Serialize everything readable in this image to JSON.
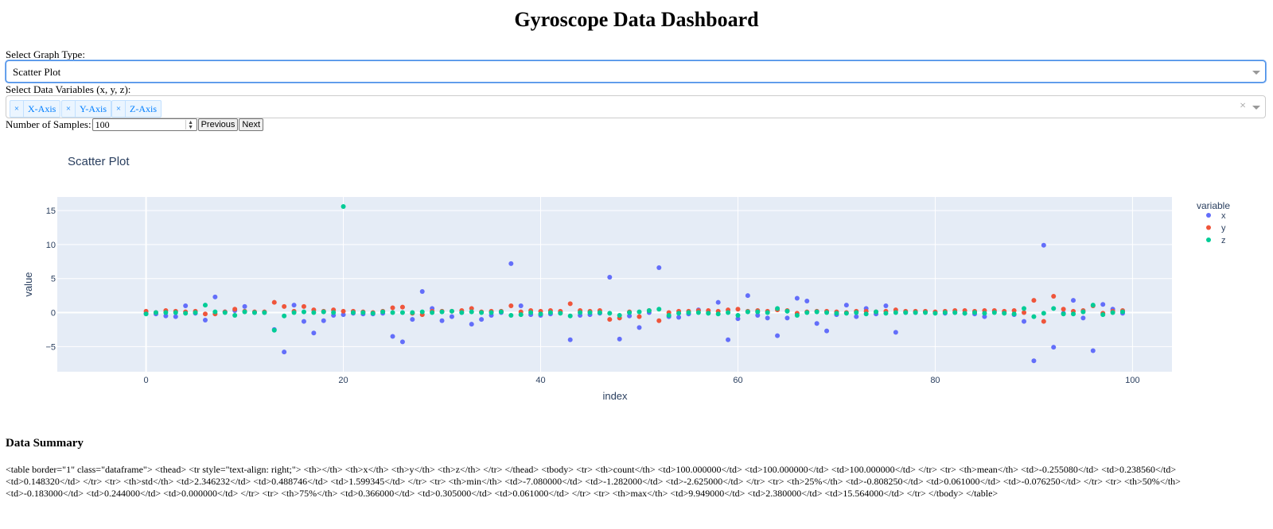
{
  "page": {
    "title": "Gyroscope Data Dashboard"
  },
  "controls": {
    "graph_type_label": "Select Graph Type:",
    "graph_type_value": "Scatter Plot",
    "variables_label": "Select Data Variables (x, y, z):",
    "variables": [
      "X-Axis",
      "Y-Axis",
      "Z-Axis"
    ],
    "chip_remove": "×",
    "clear_all": "×",
    "samples_label": "Number of Samples:",
    "samples_value": "100",
    "prev_label": "Previous",
    "next_label": "Next"
  },
  "summary": {
    "heading": "Data Summary",
    "text": "<table border=\"1\" class=\"dataframe\"> <thead> <tr style=\"text-align: right;\"> <th></th> <th>x</th> <th>y</th> <th>z</th> </tr> </thead> <tbody> <tr> <th>count</th> <td>100.000000</td> <td>100.000000</td> <td>100.000000</td> </tr> <tr> <th>mean</th> <td>-0.255080</td> <td>0.238560</td> <td>0.148320</td> </tr> <tr> <th>std</th> <td>2.346232</td> <td>0.488746</td> <td>1.599345</td> </tr> <tr> <th>min</th> <td>-7.080000</td> <td>-1.282000</td> <td>-2.625000</td> </tr> <tr> <th>25%</th> <td>-0.808250</td> <td>0.061000</td> <td>-0.076250</td> </tr> <tr> <th>50%</th> <td>-0.183000</td> <td>0.244000</td> <td>0.000000</td> </tr> <tr> <th>75%</th> <td>0.366000</td> <td>0.305000</td> <td>0.061000</td> </tr> <tr> <th>max</th> <td>9.949000</td> <td>2.380000</td> <td>15.564000</td> </tr> </tbody> </table>"
  },
  "chart_data": {
    "type": "scatter",
    "title": "Scatter Plot",
    "xlabel": "index",
    "ylabel": "value",
    "xlim": [
      -9,
      104
    ],
    "ylim": [
      -8.7,
      17
    ],
    "xticks": [
      0,
      20,
      40,
      60,
      80,
      100
    ],
    "yticks": [
      -5,
      0,
      5,
      10,
      15
    ],
    "grid": true,
    "legend_title": "variable",
    "legend_position": "top-right",
    "series": [
      {
        "name": "x",
        "color": "#636efa",
        "points": [
          [
            0,
            -0.1
          ],
          [
            1,
            -0.2
          ],
          [
            2,
            -0.5
          ],
          [
            3,
            -0.6
          ],
          [
            4,
            1.0
          ],
          [
            5,
            -0.1
          ],
          [
            6,
            -1.1
          ],
          [
            7,
            2.3
          ],
          [
            8,
            0.1
          ],
          [
            9,
            0.3
          ],
          [
            10,
            0.9
          ],
          [
            11,
            0.0
          ],
          [
            12,
            0.0
          ],
          [
            13,
            -2.5
          ],
          [
            14,
            -5.8
          ],
          [
            15,
            1.1
          ],
          [
            16,
            -1.3
          ],
          [
            17,
            -3.0
          ],
          [
            18,
            -1.2
          ],
          [
            19,
            -0.4
          ],
          [
            20,
            -0.3
          ],
          [
            21,
            -0.1
          ],
          [
            22,
            -0.2
          ],
          [
            23,
            -0.2
          ],
          [
            24,
            -0.1
          ],
          [
            25,
            -3.5
          ],
          [
            26,
            -4.3
          ],
          [
            27,
            -1.0
          ],
          [
            28,
            3.1
          ],
          [
            29,
            0.6
          ],
          [
            30,
            -1.2
          ],
          [
            31,
            -0.6
          ],
          [
            32,
            0.0
          ],
          [
            33,
            -1.7
          ],
          [
            34,
            -1.0
          ],
          [
            35,
            -0.4
          ],
          [
            36,
            0.0
          ],
          [
            37,
            7.2
          ],
          [
            38,
            1.0
          ],
          [
            39,
            -0.3
          ],
          [
            40,
            -0.4
          ],
          [
            41,
            -0.2
          ],
          [
            42,
            0.0
          ],
          [
            43,
            -4.0
          ],
          [
            44,
            -0.4
          ],
          [
            45,
            -0.3
          ],
          [
            46,
            -0.1
          ],
          [
            47,
            5.2
          ],
          [
            48,
            -3.9
          ],
          [
            49,
            -0.5
          ],
          [
            50,
            -2.2
          ],
          [
            51,
            0.0
          ],
          [
            52,
            6.6
          ],
          [
            53,
            -0.6
          ],
          [
            54,
            -0.7
          ],
          [
            55,
            -0.2
          ],
          [
            56,
            0.4
          ],
          [
            57,
            0.0
          ],
          [
            58,
            1.5
          ],
          [
            59,
            -4.0
          ],
          [
            60,
            -0.9
          ],
          [
            61,
            2.5
          ],
          [
            62,
            -0.4
          ],
          [
            63,
            -0.8
          ],
          [
            64,
            -3.4
          ],
          [
            65,
            -0.8
          ],
          [
            66,
            2.1
          ],
          [
            67,
            1.7
          ],
          [
            68,
            -1.6
          ],
          [
            69,
            -2.7
          ],
          [
            70,
            -0.3
          ],
          [
            71,
            1.1
          ],
          [
            72,
            -0.6
          ],
          [
            73,
            0.6
          ],
          [
            74,
            -0.2
          ],
          [
            75,
            1.0
          ],
          [
            76,
            -2.9
          ],
          [
            77,
            0.0
          ],
          [
            78,
            0.0
          ],
          [
            79,
            0.1
          ],
          [
            80,
            0.0
          ],
          [
            81,
            -0.1
          ],
          [
            82,
            0.0
          ],
          [
            83,
            -0.1
          ],
          [
            84,
            -0.2
          ],
          [
            85,
            -0.6
          ],
          [
            86,
            0.2
          ],
          [
            87,
            0.0
          ],
          [
            88,
            -0.3
          ],
          [
            89,
            -1.3
          ],
          [
            90,
            -7.1
          ],
          [
            91,
            9.9
          ],
          [
            92,
            -5.1
          ],
          [
            93,
            -0.1
          ],
          [
            94,
            1.8
          ],
          [
            95,
            -0.8
          ],
          [
            96,
            -5.6
          ],
          [
            97,
            1.2
          ],
          [
            98,
            0.5
          ],
          [
            99,
            -0.1
          ]
        ]
      },
      {
        "name": "y",
        "color": "#ef553b",
        "points": [
          [
            0,
            0.2
          ],
          [
            1,
            0.0
          ],
          [
            2,
            0.3
          ],
          [
            3,
            0.2
          ],
          [
            4,
            0.1
          ],
          [
            5,
            0.2
          ],
          [
            6,
            -0.2
          ],
          [
            7,
            -0.2
          ],
          [
            8,
            0.1
          ],
          [
            9,
            0.5
          ],
          [
            10,
            0.2
          ],
          [
            11,
            0.1
          ],
          [
            12,
            0.1
          ],
          [
            13,
            1.5
          ],
          [
            14,
            0.9
          ],
          [
            15,
            0.2
          ],
          [
            16,
            0.9
          ],
          [
            17,
            0.4
          ],
          [
            18,
            0.2
          ],
          [
            19,
            0.4
          ],
          [
            20,
            0.2
          ],
          [
            21,
            0.2
          ],
          [
            22,
            0.1
          ],
          [
            23,
            0.0
          ],
          [
            24,
            0.2
          ],
          [
            25,
            0.7
          ],
          [
            26,
            0.8
          ],
          [
            27,
            -0.1
          ],
          [
            28,
            -0.3
          ],
          [
            29,
            0.2
          ],
          [
            30,
            0.2
          ],
          [
            31,
            0.2
          ],
          [
            32,
            0.3
          ],
          [
            33,
            0.6
          ],
          [
            34,
            0.1
          ],
          [
            35,
            0.2
          ],
          [
            36,
            0.2
          ],
          [
            37,
            1.0
          ],
          [
            38,
            0.1
          ],
          [
            39,
            0.3
          ],
          [
            40,
            0.2
          ],
          [
            41,
            0.3
          ],
          [
            42,
            0.2
          ],
          [
            43,
            1.3
          ],
          [
            44,
            0.3
          ],
          [
            45,
            0.2
          ],
          [
            46,
            0.3
          ],
          [
            47,
            -1.0
          ],
          [
            48,
            -0.8
          ],
          [
            49,
            0.1
          ],
          [
            50,
            -0.6
          ],
          [
            51,
            0.3
          ],
          [
            52,
            -1.2
          ],
          [
            53,
            0.0
          ],
          [
            54,
            0.2
          ],
          [
            55,
            0.2
          ],
          [
            56,
            0.3
          ],
          [
            57,
            0.3
          ],
          [
            58,
            0.2
          ],
          [
            59,
            0.4
          ],
          [
            60,
            0.5
          ],
          [
            61,
            0.2
          ],
          [
            62,
            0.3
          ],
          [
            63,
            0.2
          ],
          [
            64,
            0.4
          ],
          [
            65,
            0.3
          ],
          [
            66,
            -0.1
          ],
          [
            67,
            0.1
          ],
          [
            68,
            0.2
          ],
          [
            69,
            0.2
          ],
          [
            70,
            0.1
          ],
          [
            71,
            0.0
          ],
          [
            72,
            0.2
          ],
          [
            73,
            0.2
          ],
          [
            74,
            0.1
          ],
          [
            75,
            0.2
          ],
          [
            76,
            0.4
          ],
          [
            77,
            0.2
          ],
          [
            78,
            0.2
          ],
          [
            79,
            0.2
          ],
          [
            80,
            0.1
          ],
          [
            81,
            0.2
          ],
          [
            82,
            0.3
          ],
          [
            83,
            0.3
          ],
          [
            84,
            0.2
          ],
          [
            85,
            0.3
          ],
          [
            86,
            0.3
          ],
          [
            87,
            0.2
          ],
          [
            88,
            0.3
          ],
          [
            89,
            0.0
          ],
          [
            90,
            1.8
          ],
          [
            91,
            -1.3
          ],
          [
            92,
            2.4
          ],
          [
            93,
            0.5
          ],
          [
            94,
            0.2
          ],
          [
            95,
            0.3
          ],
          [
            96,
            1.0
          ],
          [
            97,
            -0.1
          ],
          [
            98,
            0.2
          ],
          [
            99,
            0.3
          ]
        ]
      },
      {
        "name": "z",
        "color": "#00cc96",
        "points": [
          [
            0,
            -0.2
          ],
          [
            1,
            0.0
          ],
          [
            2,
            0.0
          ],
          [
            3,
            0.0
          ],
          [
            4,
            -0.1
          ],
          [
            5,
            0.0
          ],
          [
            6,
            1.1
          ],
          [
            7,
            0.1
          ],
          [
            8,
            0.0
          ],
          [
            9,
            -0.4
          ],
          [
            10,
            0.1
          ],
          [
            11,
            0.0
          ],
          [
            12,
            0.0
          ],
          [
            13,
            -2.6
          ],
          [
            14,
            -0.5
          ],
          [
            15,
            0.0
          ],
          [
            16,
            0.1
          ],
          [
            17,
            0.0
          ],
          [
            18,
            0.1
          ],
          [
            19,
            0.0
          ],
          [
            20,
            15.6
          ],
          [
            21,
            0.0
          ],
          [
            22,
            0.0
          ],
          [
            23,
            -0.1
          ],
          [
            24,
            0.1
          ],
          [
            25,
            0.0
          ],
          [
            26,
            0.0
          ],
          [
            27,
            0.0
          ],
          [
            28,
            0.1
          ],
          [
            29,
            0.0
          ],
          [
            30,
            0.1
          ],
          [
            31,
            0.2
          ],
          [
            32,
            0.0
          ],
          [
            33,
            0.1
          ],
          [
            34,
            0.0
          ],
          [
            35,
            0.0
          ],
          [
            36,
            0.1
          ],
          [
            37,
            -0.4
          ],
          [
            38,
            -0.3
          ],
          [
            39,
            0.0
          ],
          [
            40,
            -0.2
          ],
          [
            41,
            0.0
          ],
          [
            42,
            -0.1
          ],
          [
            43,
            -0.5
          ],
          [
            44,
            0.0
          ],
          [
            45,
            0.0
          ],
          [
            46,
            0.0
          ],
          [
            47,
            -0.1
          ],
          [
            48,
            -0.4
          ],
          [
            49,
            0.0
          ],
          [
            50,
            0.1
          ],
          [
            51,
            0.3
          ],
          [
            52,
            0.5
          ],
          [
            53,
            -0.4
          ],
          [
            54,
            -0.1
          ],
          [
            55,
            0.0
          ],
          [
            56,
            0.0
          ],
          [
            57,
            -0.1
          ],
          [
            58,
            -0.2
          ],
          [
            59,
            0.0
          ],
          [
            60,
            -0.4
          ],
          [
            61,
            0.1
          ],
          [
            62,
            0.1
          ],
          [
            63,
            0.0
          ],
          [
            64,
            0.6
          ],
          [
            65,
            0.2
          ],
          [
            66,
            -0.4
          ],
          [
            67,
            0.0
          ],
          [
            68,
            0.1
          ],
          [
            69,
            0.0
          ],
          [
            70,
            -0.1
          ],
          [
            71,
            -0.1
          ],
          [
            72,
            0.0
          ],
          [
            73,
            -0.2
          ],
          [
            74,
            0.1
          ],
          [
            75,
            -0.1
          ],
          [
            76,
            0.0
          ],
          [
            77,
            0.0
          ],
          [
            78,
            0.0
          ],
          [
            79,
            0.0
          ],
          [
            80,
            -0.1
          ],
          [
            81,
            0.0
          ],
          [
            82,
            0.0
          ],
          [
            83,
            -0.1
          ],
          [
            84,
            0.0
          ],
          [
            85,
            -0.1
          ],
          [
            86,
            0.0
          ],
          [
            87,
            -0.1
          ],
          [
            88,
            -0.2
          ],
          [
            89,
            0.6
          ],
          [
            90,
            -0.6
          ],
          [
            91,
            -0.1
          ],
          [
            92,
            0.6
          ],
          [
            93,
            -0.2
          ],
          [
            94,
            -0.2
          ],
          [
            95,
            0.1
          ],
          [
            96,
            1.1
          ],
          [
            97,
            -0.3
          ],
          [
            98,
            0.0
          ],
          [
            99,
            0.1
          ]
        ]
      }
    ]
  }
}
